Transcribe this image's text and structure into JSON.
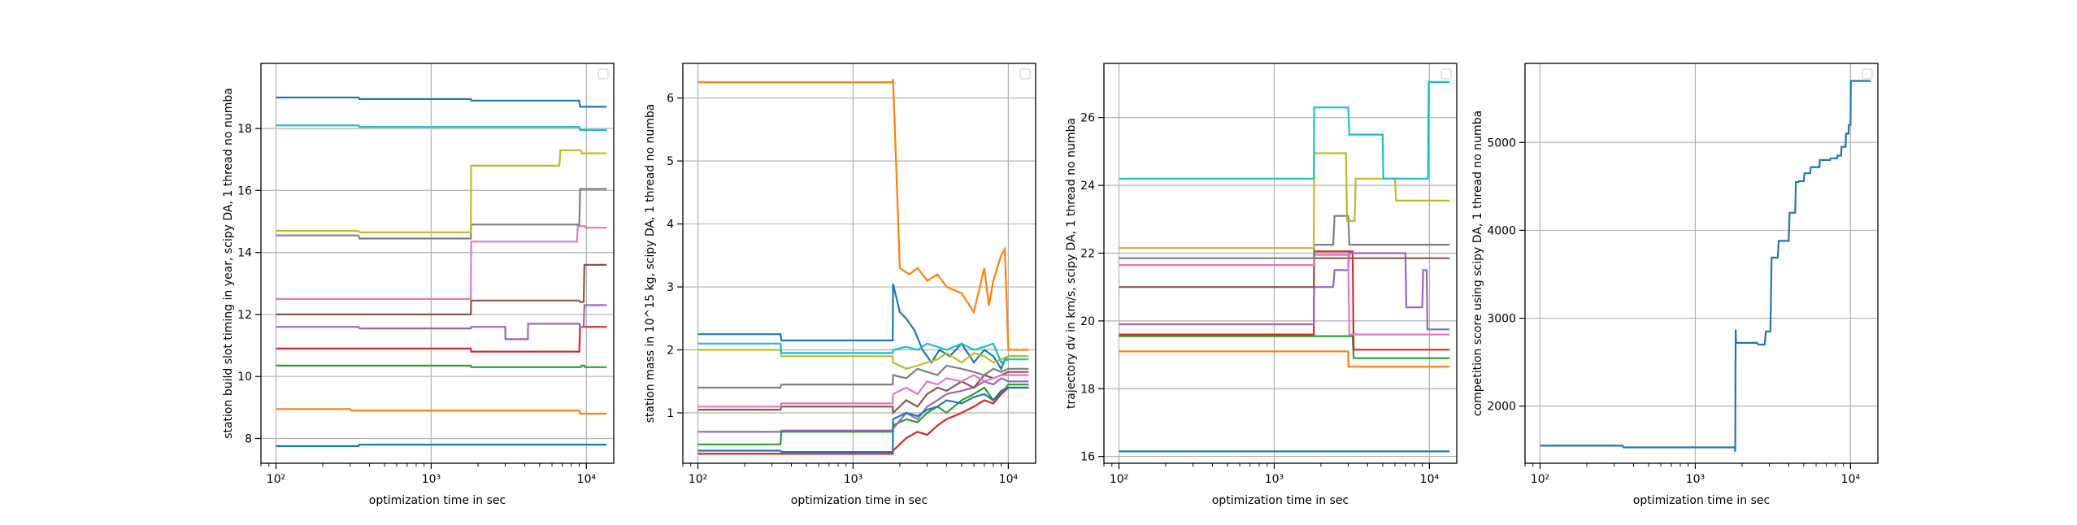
{
  "colors": {
    "palette": [
      "#1f77b4",
      "#ff7f0e",
      "#2ca02c",
      "#d62728",
      "#9467bd",
      "#8c564b",
      "#e377c2",
      "#7f7f7f",
      "#bcbd22",
      "#17becf"
    ],
    "grid": "#b0b0b0",
    "axis": "#000000",
    "background": "#ffffff"
  },
  "chart_data": [
    {
      "type": "line",
      "xscale": "log",
      "xlim": [
        80,
        15000
      ],
      "ylim": [
        7.2,
        20.1
      ],
      "xticks": [
        100,
        1000,
        10000
      ],
      "xtick_labels": [
        "10²",
        "10³",
        "10⁴"
      ],
      "yticks": [
        8,
        10,
        12,
        14,
        16,
        18
      ],
      "ytick_labels": [
        "8",
        "10",
        "12",
        "14",
        "16",
        "18"
      ],
      "xlabel": "optimization time in sec",
      "ylabel": "station build slot timing in year, scipy DA, 1 thread no numba",
      "grid": true,
      "legend": "top-right (empty)",
      "series": [
        {
          "x": [
            100,
            340,
            345,
            1800,
            1810,
            9000,
            9100,
            13500
          ],
          "y": [
            19.0,
            19.0,
            18.95,
            18.95,
            18.9,
            18.9,
            18.7,
            18.7
          ]
        },
        {
          "x": [
            100,
            300,
            305,
            9000,
            9100,
            13500
          ],
          "y": [
            8.95,
            8.95,
            8.9,
            8.9,
            8.8,
            8.8
          ]
        },
        {
          "x": [
            100,
            1800,
            1810,
            9200,
            9300,
            9700,
            9800,
            13500
          ],
          "y": [
            10.35,
            10.35,
            10.3,
            10.3,
            10.35,
            10.35,
            10.3,
            10.3
          ]
        },
        {
          "x": [
            100,
            1800,
            1810,
            9000,
            9100,
            13500
          ],
          "y": [
            10.9,
            10.9,
            10.8,
            10.8,
            11.6,
            11.6
          ]
        },
        {
          "x": [
            100,
            340,
            345,
            1800,
            1810,
            3000,
            3010,
            4200,
            4210,
            9000,
            9100,
            9600,
            9700,
            13500
          ],
          "y": [
            11.6,
            11.6,
            11.55,
            11.55,
            11.6,
            11.6,
            11.2,
            11.2,
            11.7,
            11.7,
            11.6,
            11.6,
            12.3,
            12.3
          ]
        },
        {
          "x": [
            100,
            1800,
            1810,
            9000,
            9100,
            9600,
            9700,
            13500
          ],
          "y": [
            12.0,
            12.0,
            12.45,
            12.45,
            12.4,
            12.4,
            13.6,
            13.6
          ]
        },
        {
          "x": [
            100,
            1800,
            1810,
            8700,
            8800,
            9800,
            9900,
            13500
          ],
          "y": [
            12.5,
            12.5,
            14.35,
            14.35,
            14.85,
            14.85,
            14.8,
            14.8
          ]
        },
        {
          "x": [
            100,
            340,
            345,
            1800,
            1810,
            9000,
            9100,
            13500
          ],
          "y": [
            14.55,
            14.55,
            14.45,
            14.45,
            14.9,
            14.9,
            16.05,
            16.05
          ]
        },
        {
          "x": [
            100,
            340,
            345,
            1800,
            1810,
            6700,
            6800,
            9200,
            9300,
            13500
          ],
          "y": [
            14.7,
            14.7,
            14.65,
            14.65,
            16.8,
            16.8,
            17.3,
            17.3,
            17.2,
            17.2
          ]
        },
        {
          "x": [
            100,
            340,
            345,
            9000,
            9100,
            13500
          ],
          "y": [
            18.1,
            18.1,
            18.05,
            18.05,
            17.95,
            17.95
          ]
        },
        {
          "x": [
            100,
            340,
            345,
            13500
          ],
          "y": [
            7.75,
            7.75,
            7.8,
            7.8
          ],
          "color_index": 0
        }
      ]
    },
    {
      "type": "line",
      "xscale": "log",
      "xlim": [
        80,
        15000
      ],
      "ylim": [
        0.2,
        6.55
      ],
      "xticks": [
        100,
        1000,
        10000
      ],
      "xtick_labels": [
        "10²",
        "10³",
        "10⁴"
      ],
      "yticks": [
        1,
        2,
        3,
        4,
        5,
        6
      ],
      "ytick_labels": [
        "1",
        "2",
        "3",
        "4",
        "5",
        "6"
      ],
      "xlabel": "optimization time in sec",
      "ylabel": "station mass in 10^15 kg, scipy DA, 1 thread no numba",
      "grid": true,
      "legend": "top-right (empty)",
      "series": [
        {
          "x": [
            100,
            340,
            345,
            1800,
            1810,
            2000,
            2200,
            2500,
            2800,
            3200,
            3600,
            4200,
            5000,
            6000,
            7000,
            8000,
            9000,
            9500,
            10000,
            13500
          ],
          "y": [
            2.25,
            2.25,
            2.15,
            2.15,
            3.05,
            2.6,
            2.5,
            2.3,
            2.0,
            1.8,
            2.0,
            1.9,
            2.1,
            1.8,
            2.0,
            1.9,
            1.7,
            1.85,
            1.9,
            1.9
          ]
        },
        {
          "x": [
            100,
            1800,
            1810,
            2000,
            2300,
            2600,
            3000,
            3500,
            4000,
            5000,
            6000,
            7000,
            7500,
            8000,
            9000,
            9500,
            10000,
            13500
          ],
          "y": [
            6.25,
            6.25,
            6.3,
            3.3,
            3.2,
            3.3,
            3.1,
            3.2,
            3.0,
            2.9,
            2.6,
            3.3,
            2.7,
            3.1,
            3.5,
            3.6,
            2.0,
            2.0
          ]
        },
        {
          "x": [
            100,
            340,
            345,
            1800,
            1810,
            2200,
            2600,
            3000,
            3500,
            4000,
            5000,
            6000,
            7000,
            8000,
            9000,
            10000,
            13500
          ],
          "y": [
            0.5,
            0.5,
            0.7,
            0.7,
            0.8,
            0.9,
            0.85,
            1.0,
            1.1,
            1.0,
            1.2,
            1.3,
            1.4,
            1.2,
            1.3,
            1.45,
            1.45
          ]
        },
        {
          "x": [
            100,
            1800,
            1810,
            2200,
            2600,
            3000,
            3500,
            4000,
            5000,
            6000,
            7000,
            8000,
            9000,
            10000,
            13500
          ],
          "y": [
            0.35,
            0.35,
            0.4,
            0.6,
            0.7,
            0.65,
            0.8,
            0.9,
            1.0,
            1.1,
            1.2,
            1.15,
            1.3,
            1.4,
            1.4
          ]
        },
        {
          "x": [
            100,
            340,
            345,
            1800,
            1810,
            2200,
            2600,
            3000,
            3500,
            4000,
            5000,
            6000,
            7000,
            8000,
            9000,
            10000,
            13500
          ],
          "y": [
            0.7,
            0.7,
            0.72,
            0.72,
            0.75,
            1.0,
            0.9,
            1.1,
            1.2,
            1.3,
            1.35,
            1.4,
            1.5,
            1.45,
            1.55,
            1.5,
            1.5
          ]
        },
        {
          "x": [
            100,
            340,
            345,
            1800,
            1810,
            2200,
            2600,
            3000,
            3500,
            4000,
            5000,
            6000,
            7000,
            8000,
            9000,
            10000,
            13500
          ],
          "y": [
            1.05,
            1.05,
            1.1,
            1.1,
            1.0,
            1.2,
            1.1,
            1.3,
            1.4,
            1.35,
            1.5,
            1.4,
            1.6,
            1.55,
            1.6,
            1.65,
            1.65
          ]
        },
        {
          "x": [
            100,
            340,
            345,
            1800,
            1810,
            2200,
            2600,
            3000,
            3500,
            4000,
            5000,
            6000,
            7000,
            8000,
            9000,
            10000,
            13500
          ],
          "y": [
            1.1,
            1.1,
            1.15,
            1.15,
            1.3,
            1.4,
            1.3,
            1.5,
            1.45,
            1.55,
            1.5,
            1.6,
            1.5,
            1.55,
            1.6,
            1.6,
            1.6
          ]
        },
        {
          "x": [
            100,
            340,
            345,
            1800,
            1810,
            2200,
            2600,
            3000,
            3500,
            4000,
            5000,
            6000,
            7000,
            8000,
            9000,
            10000,
            13500
          ],
          "y": [
            1.4,
            1.4,
            1.45,
            1.45,
            1.6,
            1.55,
            1.7,
            1.65,
            1.6,
            1.75,
            1.7,
            1.65,
            1.6,
            1.7,
            1.65,
            1.7,
            1.7
          ]
        },
        {
          "x": [
            100,
            340,
            345,
            1800,
            1810,
            2200,
            2600,
            3000,
            3500,
            4000,
            5000,
            6000,
            7000,
            8000,
            9000,
            10000,
            13500
          ],
          "y": [
            2.0,
            2.0,
            1.9,
            1.9,
            1.8,
            1.7,
            1.75,
            1.8,
            1.85,
            1.95,
            1.8,
            1.95,
            1.9,
            1.8,
            1.85,
            1.9,
            1.9
          ]
        },
        {
          "x": [
            100,
            340,
            345,
            1800,
            1810,
            2200,
            2600,
            3000,
            3500,
            4000,
            5000,
            6000,
            7000,
            8000,
            9000,
            10000,
            13500
          ],
          "y": [
            2.1,
            2.1,
            1.95,
            1.95,
            2.0,
            2.05,
            2.0,
            2.1,
            2.05,
            2.0,
            2.1,
            2.0,
            2.05,
            2.1,
            1.8,
            1.85,
            1.85
          ]
        },
        {
          "x": [
            100,
            340,
            345,
            1800,
            1810,
            2200,
            2600,
            3000,
            3500,
            4000,
            5000,
            6000,
            7000,
            8000,
            9000,
            10000,
            13500
          ],
          "y": [
            0.4,
            0.4,
            0.38,
            0.38,
            0.9,
            1.0,
            0.95,
            1.05,
            1.1,
            1.2,
            1.15,
            1.25,
            1.3,
            1.2,
            1.35,
            1.4,
            1.4
          ],
          "color_index": 0
        }
      ]
    },
    {
      "type": "line",
      "xscale": "log",
      "xlim": [
        80,
        15000
      ],
      "ylim": [
        15.8,
        27.6
      ],
      "xticks": [
        100,
        1000,
        10000
      ],
      "xtick_labels": [
        "10²",
        "10³",
        "10⁴"
      ],
      "yticks": [
        16,
        18,
        20,
        22,
        24,
        26
      ],
      "ytick_labels": [
        "16",
        "18",
        "20",
        "22",
        "24",
        "26"
      ],
      "xlabel": "optimization time in sec",
      "ylabel": "trajectory dv in km/s, scipy DA, 1 thread no numba",
      "grid": true,
      "legend": "top-right (empty)",
      "series": [
        {
          "x": [
            100,
            13500
          ],
          "y": [
            16.15,
            16.15
          ]
        },
        {
          "x": [
            100,
            3000,
            3010,
            13500
          ],
          "y": [
            19.1,
            19.1,
            18.65,
            18.65
          ]
        },
        {
          "x": [
            100,
            1800,
            1810,
            3200,
            3250,
            13500
          ],
          "y": [
            19.55,
            19.55,
            19.55,
            19.55,
            18.9,
            18.9
          ]
        },
        {
          "x": [
            100,
            1800,
            1810,
            3200,
            3250,
            13500
          ],
          "y": [
            19.6,
            19.6,
            22.05,
            22.05,
            19.15,
            19.15
          ]
        },
        {
          "x": [
            100,
            1800,
            1810,
            2400,
            2450,
            3000,
            3050,
            7000,
            7100,
            9000,
            9100,
            9600,
            9700,
            13500
          ],
          "y": [
            19.9,
            19.9,
            21.0,
            21.0,
            21.5,
            21.5,
            22.0,
            22.0,
            20.4,
            20.4,
            21.5,
            21.5,
            19.75,
            19.75
          ]
        },
        {
          "x": [
            100,
            1800,
            1810,
            13500
          ],
          "y": [
            21.0,
            21.0,
            21.85,
            21.85
          ]
        },
        {
          "x": [
            100,
            1800,
            1810,
            3000,
            3050,
            13500
          ],
          "y": [
            21.65,
            21.65,
            21.95,
            21.95,
            19.6,
            19.6
          ]
        },
        {
          "x": [
            100,
            1800,
            1810,
            2400,
            2450,
            3000,
            3050,
            13500
          ],
          "y": [
            21.85,
            21.85,
            22.25,
            22.25,
            23.1,
            23.1,
            22.25,
            22.25
          ]
        },
        {
          "x": [
            100,
            1800,
            1810,
            2900,
            2950,
            3300,
            3350,
            6000,
            6100,
            13500
          ],
          "y": [
            22.15,
            22.15,
            24.95,
            24.95,
            22.95,
            22.95,
            24.2,
            24.2,
            23.55,
            23.55
          ]
        },
        {
          "x": [
            100,
            1800,
            1810,
            3000,
            3050,
            5000,
            5050,
            9800,
            9900,
            13500
          ],
          "y": [
            24.2,
            24.2,
            26.3,
            26.3,
            25.5,
            25.5,
            24.2,
            24.2,
            27.05,
            27.05
          ]
        }
      ]
    },
    {
      "type": "line",
      "xscale": "log",
      "xlim": [
        80,
        15000
      ],
      "ylim": [
        1350,
        5900
      ],
      "xticks": [
        100,
        1000,
        10000
      ],
      "xtick_labels": [
        "10²",
        "10³",
        "10⁴"
      ],
      "yticks": [
        2000,
        3000,
        4000,
        5000
      ],
      "ytick_labels": [
        "2000",
        "3000",
        "4000",
        "5000"
      ],
      "xlabel": "optimization time in sec",
      "ylabel": "competition score using scipy DA, 1 thread no numba",
      "grid": true,
      "legend": "top-right (empty)",
      "series": [
        {
          "x": [
            100,
            340,
            345,
            1800,
            1810,
            1820,
            1830,
            2500,
            2550,
            2800,
            2850,
            3050,
            3100,
            3400,
            3450,
            4000,
            4050,
            4400,
            4450,
            4600,
            4650,
            5000,
            5050,
            5500,
            5550,
            6300,
            6350,
            7400,
            7450,
            8200,
            8250,
            8700,
            8750,
            9300,
            9350,
            9700,
            9750,
            10000,
            10050,
            13500
          ],
          "y": [
            1550,
            1550,
            1530,
            1530,
            1480,
            2870,
            2720,
            2720,
            2700,
            2700,
            2850,
            2850,
            3690,
            3690,
            3880,
            3880,
            4200,
            4200,
            4550,
            4550,
            4560,
            4560,
            4650,
            4650,
            4720,
            4720,
            4800,
            4800,
            4820,
            4820,
            4850,
            4850,
            4950,
            4950,
            5100,
            5100,
            5200,
            5200,
            5700,
            5700
          ]
        }
      ]
    }
  ]
}
